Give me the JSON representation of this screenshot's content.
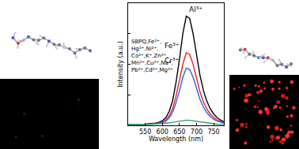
{
  "chart_data": {
    "type": "line",
    "x_label": "Wavelength (nm)",
    "y_label": "Intensity (a.u.)",
    "x": [
      500,
      510,
      520,
      530,
      540,
      550,
      560,
      570,
      580,
      590,
      600,
      610,
      620,
      630,
      640,
      650,
      660,
      670,
      680,
      690,
      700,
      710,
      720,
      730,
      740,
      750,
      760,
      770,
      780
    ],
    "series": [
      {
        "name": "Al³⁺",
        "color": "#000000",
        "values": [
          5,
          5,
          6,
          6,
          7,
          8,
          10,
          12,
          15,
          20,
          30,
          50,
          90,
          160,
          280,
          430,
          600,
          715,
          700,
          600,
          460,
          330,
          230,
          160,
          110,
          75,
          50,
          35,
          25
        ]
      },
      {
        "name": "Fe³⁺",
        "color": "#e8202a",
        "values": [
          5,
          5,
          5,
          6,
          6,
          7,
          8,
          10,
          12,
          15,
          22,
          35,
          62,
          108,
          190,
          290,
          400,
          475,
          465,
          400,
          305,
          220,
          155,
          107,
          75,
          52,
          35,
          25,
          18
        ]
      },
      {
        "name": "Cr³⁺",
        "color": "#3a5bd9",
        "values": [
          4,
          4,
          5,
          5,
          5,
          6,
          7,
          8,
          10,
          12,
          17,
          27,
          48,
          85,
          148,
          225,
          315,
          375,
          365,
          315,
          240,
          172,
          120,
          84,
          58,
          40,
          28,
          20,
          15
        ]
      },
      {
        "name": "SBPQ, Fe²⁺, Hg²⁺, Ni²⁺, Co²⁺, K⁺, Zn²⁺, Mn²⁺, Cu²⁺, Na⁺, Pb²⁺, Cd²⁺, Mg²⁺",
        "color": "#2e9e6a",
        "values": [
          5,
          5,
          5,
          5,
          6,
          6,
          7,
          8,
          9,
          10,
          12,
          14,
          17,
          20,
          24,
          28,
          32,
          34,
          33,
          30,
          26,
          22,
          18,
          15,
          12,
          10,
          8,
          7,
          6
        ]
      }
    ],
    "xlim": [
      500,
      780
    ],
    "ylim": [
      0,
      800
    ],
    "xticks": [
      550,
      600,
      650,
      700,
      750
    ],
    "yticks": [
      0,
      200,
      400,
      600,
      800
    ],
    "tick_labels": "x",
    "grid": false
  }
}
